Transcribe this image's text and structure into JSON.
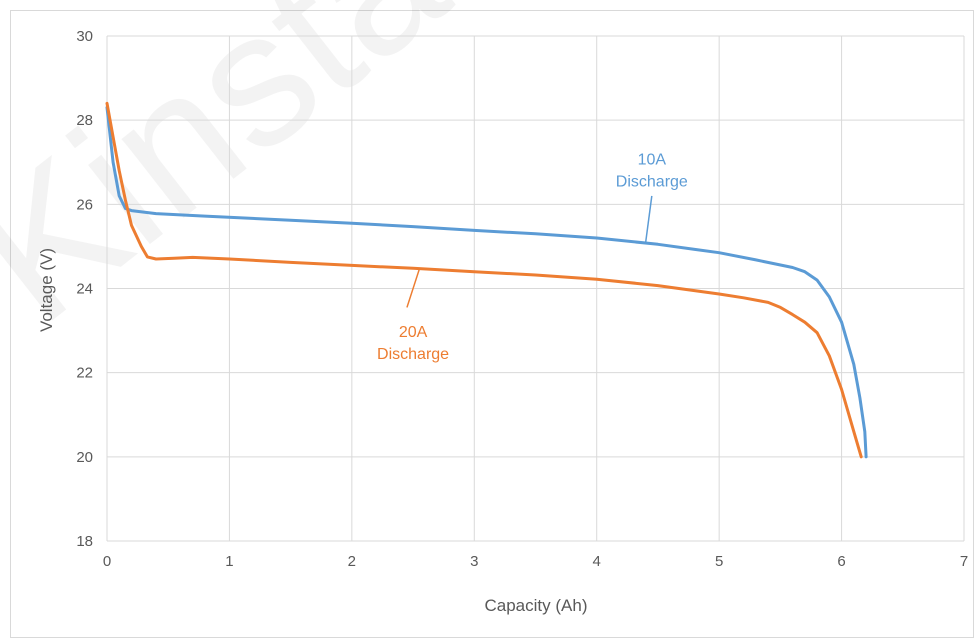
{
  "chart_data": {
    "type": "line",
    "xlabel": "Capacity (Ah)",
    "ylabel": "Voltage (V)",
    "xlim": [
      0,
      7
    ],
    "ylim": [
      18,
      30
    ],
    "x_ticks": [
      0,
      1,
      2,
      3,
      4,
      5,
      6,
      7
    ],
    "y_ticks": [
      18,
      20,
      22,
      24,
      26,
      28,
      30
    ],
    "grid": true,
    "legend": "none",
    "watermark": "Kinstar",
    "series": [
      {
        "name": "10A Discharge",
        "color": "#5b9bd5",
        "points": [
          [
            0.0,
            28.3
          ],
          [
            0.05,
            27.0
          ],
          [
            0.1,
            26.2
          ],
          [
            0.15,
            25.9
          ],
          [
            0.2,
            25.85
          ],
          [
            0.4,
            25.78
          ],
          [
            0.8,
            25.72
          ],
          [
            1.5,
            25.62
          ],
          [
            2.0,
            25.55
          ],
          [
            2.5,
            25.47
          ],
          [
            3.0,
            25.38
          ],
          [
            3.5,
            25.3
          ],
          [
            4.0,
            25.2
          ],
          [
            4.5,
            25.05
          ],
          [
            4.8,
            24.93
          ],
          [
            5.0,
            24.85
          ],
          [
            5.3,
            24.68
          ],
          [
            5.6,
            24.5
          ],
          [
            5.7,
            24.4
          ],
          [
            5.8,
            24.2
          ],
          [
            5.9,
            23.8
          ],
          [
            6.0,
            23.2
          ],
          [
            6.1,
            22.2
          ],
          [
            6.15,
            21.4
          ],
          [
            6.19,
            20.6
          ],
          [
            6.2,
            20.0
          ]
        ]
      },
      {
        "name": "20A Discharge",
        "color": "#ed7d31",
        "points": [
          [
            0.0,
            28.4
          ],
          [
            0.05,
            27.6
          ],
          [
            0.1,
            26.8
          ],
          [
            0.15,
            26.1
          ],
          [
            0.2,
            25.5
          ],
          [
            0.28,
            25.0
          ],
          [
            0.33,
            24.75
          ],
          [
            0.4,
            24.7
          ],
          [
            0.55,
            24.72
          ],
          [
            0.7,
            24.74
          ],
          [
            1.0,
            24.7
          ],
          [
            1.5,
            24.62
          ],
          [
            2.0,
            24.55
          ],
          [
            2.5,
            24.48
          ],
          [
            3.0,
            24.4
          ],
          [
            3.5,
            24.32
          ],
          [
            4.0,
            24.22
          ],
          [
            4.5,
            24.07
          ],
          [
            5.0,
            23.87
          ],
          [
            5.2,
            23.78
          ],
          [
            5.4,
            23.67
          ],
          [
            5.5,
            23.55
          ],
          [
            5.6,
            23.38
          ],
          [
            5.7,
            23.2
          ],
          [
            5.8,
            22.95
          ],
          [
            5.9,
            22.4
          ],
          [
            6.0,
            21.6
          ],
          [
            6.1,
            20.6
          ],
          [
            6.16,
            20.0
          ]
        ]
      }
    ],
    "annotations": [
      {
        "lines": [
          "10A",
          "Discharge"
        ],
        "series": 0,
        "text_at": [
          4.45,
          26.95
        ],
        "pointer_from": [
          4.45,
          26.2
        ],
        "pointer_to": [
          4.4,
          25.1
        ]
      },
      {
        "lines": [
          "20A",
          "Discharge"
        ],
        "series": 1,
        "text_at": [
          2.5,
          22.85
        ],
        "pointer_from": [
          2.45,
          23.55
        ],
        "pointer_to": [
          2.55,
          24.45
        ]
      }
    ]
  }
}
